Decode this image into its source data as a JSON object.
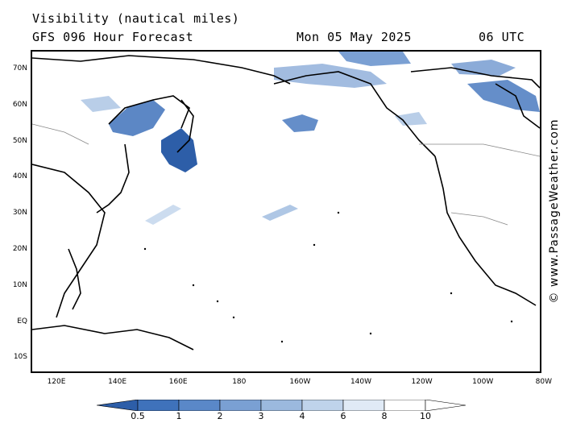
{
  "header": {
    "title_line1": "Visibility (nautical miles)",
    "title_line2": "GFS 096 Hour Forecast",
    "date": "Mon 05 May 2025",
    "time": "06 UTC"
  },
  "credit": "© www.PassageWeather.com",
  "map": {
    "lat_labels": [
      "70N",
      "60N",
      "50N",
      "40N",
      "30N",
      "20N",
      "10N",
      "EQ",
      "10S"
    ],
    "lon_labels": [
      "120E",
      "140E",
      "160E",
      "180",
      "160W",
      "140W",
      "120W",
      "100W",
      "80W"
    ]
  },
  "legend": {
    "labels": [
      "0.5",
      "1",
      "2",
      "3",
      "4",
      "6",
      "8",
      "10"
    ],
    "colors": [
      "#2d5ea8",
      "#3f72bb",
      "#5a88c8",
      "#7aa0d3",
      "#9bb9de",
      "#bfd3eb",
      "#e0eaf6",
      "#ffffff"
    ]
  }
}
